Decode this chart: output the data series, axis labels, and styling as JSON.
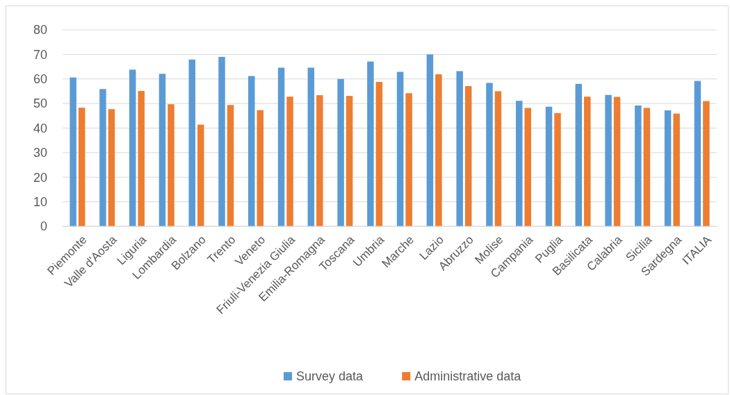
{
  "chart_data": {
    "type": "bar",
    "categories": [
      "Piemonte",
      "Valle d'Aosta",
      "Liguria",
      "Lombardia",
      "Bolzano",
      "Trento",
      "Veneto",
      "Friuli-Venezia Giulia",
      "Emilia-Romagna",
      "Toscana",
      "Umbria",
      "Marche",
      "Lazio",
      "Abruzzo",
      "Molise",
      "Campania",
      "Puglia",
      "Basilicata",
      "Calabria",
      "Sicilia",
      "Sardegna",
      "ITALIA"
    ],
    "series": [
      {
        "name": "Survey data",
        "color": "#5b9bd5",
        "values": [
          60.6,
          55.9,
          63.8,
          62.1,
          67.9,
          69.0,
          61.2,
          64.6,
          64.6,
          60.0,
          67.1,
          62.9,
          70.0,
          63.2,
          58.4,
          51.1,
          48.7,
          58.0,
          53.5,
          49.2,
          47.2,
          59.2
        ]
      },
      {
        "name": "Administrative data",
        "color": "#ed7d31",
        "values": [
          48.3,
          47.7,
          55.1,
          49.7,
          41.4,
          49.4,
          47.3,
          52.8,
          53.4,
          53.1,
          58.8,
          54.2,
          61.9,
          57.1,
          55.0,
          48.2,
          46.1,
          52.8,
          52.7,
          48.2,
          45.9,
          51.0
        ]
      }
    ],
    "ylim": [
      0,
      80
    ],
    "yticks": [
      0,
      10,
      20,
      30,
      40,
      50,
      60,
      70,
      80
    ],
    "grid": "y",
    "legend": "bottom"
  }
}
